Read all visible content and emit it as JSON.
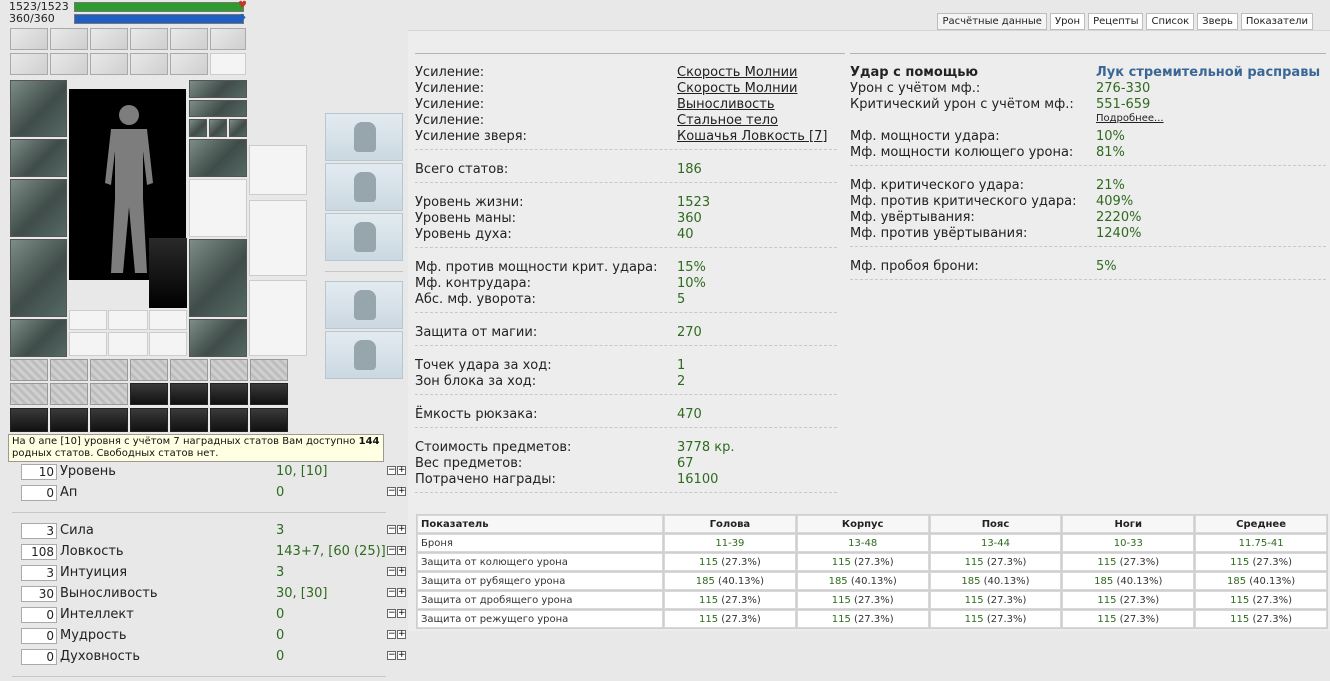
{
  "player": {
    "hp": {
      "current": 1523,
      "max": 1523,
      "text": "1523/1523",
      "fraction": 1.0,
      "color": "#2f9b2f"
    },
    "mana": {
      "current": 360,
      "max": 360,
      "text": "360/360",
      "fraction": 1.0,
      "color": "#1f5fbf"
    }
  },
  "tooltip": {
    "text_before": "На 0 апе [10] уровня с учётом 7 наградных статов Вам доступно ",
    "bold": "144",
    "text_after": " родных статов. Свободных статов нет."
  },
  "stats_top": [
    {
      "box": "10",
      "name": "Уровень",
      "value": "10, [10]"
    },
    {
      "box": "0",
      "name": "Ап",
      "value": "0"
    }
  ],
  "stats": [
    {
      "box": "3",
      "name": "Сила",
      "value": "3"
    },
    {
      "box": "108",
      "name": "Ловкость",
      "value": "143+7, [60 (25)]"
    },
    {
      "box": "3",
      "name": "Интуиция",
      "value": "3"
    },
    {
      "box": "30",
      "name": "Выносливость",
      "value": "30, [30]"
    },
    {
      "box": "0",
      "name": "Интеллект",
      "value": "0"
    },
    {
      "box": "0",
      "name": "Мудрость",
      "value": "0"
    },
    {
      "box": "0",
      "name": "Духовность",
      "value": "0"
    }
  ],
  "pm_minus": "−",
  "pm_plus": "+",
  "tabs": [
    {
      "label": "Расчётные данные",
      "active": true
    },
    {
      "label": "Урон",
      "active": false
    },
    {
      "label": "Рецепты",
      "active": false
    },
    {
      "label": "Список",
      "active": false
    },
    {
      "label": "Зверь",
      "active": false
    },
    {
      "label": "Показатели",
      "active": false
    }
  ],
  "buffs": [
    {
      "key": "Усиление:",
      "value": "Скорость Молнии"
    },
    {
      "key": "Усиление:",
      "value": "Скорость Молнии"
    },
    {
      "key": "Усиление:",
      "value": "Выносливость"
    },
    {
      "key": "Усиление:",
      "value": "Стальное тело"
    },
    {
      "key": "Усиление зверя:",
      "value": "Кошачья Ловкость [7]"
    }
  ],
  "total_stats": {
    "key": "Всего статов:",
    "value": "186"
  },
  "vitals": [
    {
      "key": "Уровень жизни:",
      "value": "1523"
    },
    {
      "key": "Уровень маны:",
      "value": "360"
    },
    {
      "key": "Уровень духа:",
      "value": "40"
    }
  ],
  "defense_mods": [
    {
      "key": "Мф. против мощности крит. удара:",
      "value": "15%"
    },
    {
      "key": "Мф. контрудара:",
      "value": "10%"
    },
    {
      "key": "Абс. мф. уворота:",
      "value": "5"
    }
  ],
  "magic_defense": {
    "key": "Защита от магии:",
    "value": "270"
  },
  "combat": [
    {
      "key": "Точек удара за ход:",
      "value": "1"
    },
    {
      "key": "Зон блока за ход:",
      "value": "2"
    }
  ],
  "backpack": {
    "key": "Ёмкость рюкзака:",
    "value": "470"
  },
  "items_info": [
    {
      "key": "Стоимость предметов:",
      "value": "3778 кр."
    },
    {
      "key": "Вес предметов:",
      "value": "67"
    },
    {
      "key": "Потрачено награды:",
      "value": "16100"
    }
  ],
  "attack": {
    "heading": "Удар с помощью",
    "weapon": "Лук стремительной расправы",
    "damage": {
      "key": "Урон с учётом мф.:",
      "value": "276-330"
    },
    "crit_damage": {
      "key": "Критический урон с учётом мф.:",
      "value": "551-659"
    },
    "more_link": "Подробнее...",
    "power": [
      {
        "key": "Мф. мощности удара:",
        "value": "10%"
      },
      {
        "key": "Мф. мощности колющего урона:",
        "value": "81%"
      }
    ],
    "mods": [
      {
        "key": "Мф. критического удара:",
        "value": "21%"
      },
      {
        "key": "Мф. против критического удара:",
        "value": "409%"
      },
      {
        "key": "Мф. увёртывания:",
        "value": "2220%"
      },
      {
        "key": "Мф. против увёртывания:",
        "value": "1240%"
      }
    ],
    "armor_pierce": {
      "key": "Мф. пробоя брони:",
      "value": "5%"
    }
  },
  "armor_table": {
    "headers": [
      "Показатель",
      "Голова",
      "Корпус",
      "Пояс",
      "Ноги",
      "Среднее"
    ],
    "rows": [
      {
        "label": "Броня",
        "cells": [
          {
            "v": "11-39",
            "p": ""
          },
          {
            "v": "13-48",
            "p": ""
          },
          {
            "v": "13-44",
            "p": ""
          },
          {
            "v": "10-33",
            "p": ""
          },
          {
            "v": "11.75-41",
            "p": ""
          }
        ]
      },
      {
        "label": "Защита от колющего урона",
        "cells": [
          {
            "v": "115",
            "p": " (27.3%)"
          },
          {
            "v": "115",
            "p": " (27.3%)"
          },
          {
            "v": "115",
            "p": " (27.3%)"
          },
          {
            "v": "115",
            "p": " (27.3%)"
          },
          {
            "v": "115",
            "p": " (27.3%)"
          }
        ]
      },
      {
        "label": "Защита от рубящего урона",
        "cells": [
          {
            "v": "185",
            "p": " (40.13%)"
          },
          {
            "v": "185",
            "p": " (40.13%)"
          },
          {
            "v": "185",
            "p": " (40.13%)"
          },
          {
            "v": "185",
            "p": " (40.13%)"
          },
          {
            "v": "185",
            "p": " (40.13%)"
          }
        ]
      },
      {
        "label": "Защита от дробящего урона",
        "cells": [
          {
            "v": "115",
            "p": " (27.3%)"
          },
          {
            "v": "115",
            "p": " (27.3%)"
          },
          {
            "v": "115",
            "p": " (27.3%)"
          },
          {
            "v": "115",
            "p": " (27.3%)"
          },
          {
            "v": "115",
            "p": " (27.3%)"
          }
        ]
      },
      {
        "label": "Защита от режущего урона",
        "cells": [
          {
            "v": "115",
            "p": " (27.3%)"
          },
          {
            "v": "115",
            "p": " (27.3%)"
          },
          {
            "v": "115",
            "p": " (27.3%)"
          },
          {
            "v": "115",
            "p": " (27.3%)"
          },
          {
            "v": "115",
            "p": " (27.3%)"
          }
        ]
      }
    ]
  }
}
